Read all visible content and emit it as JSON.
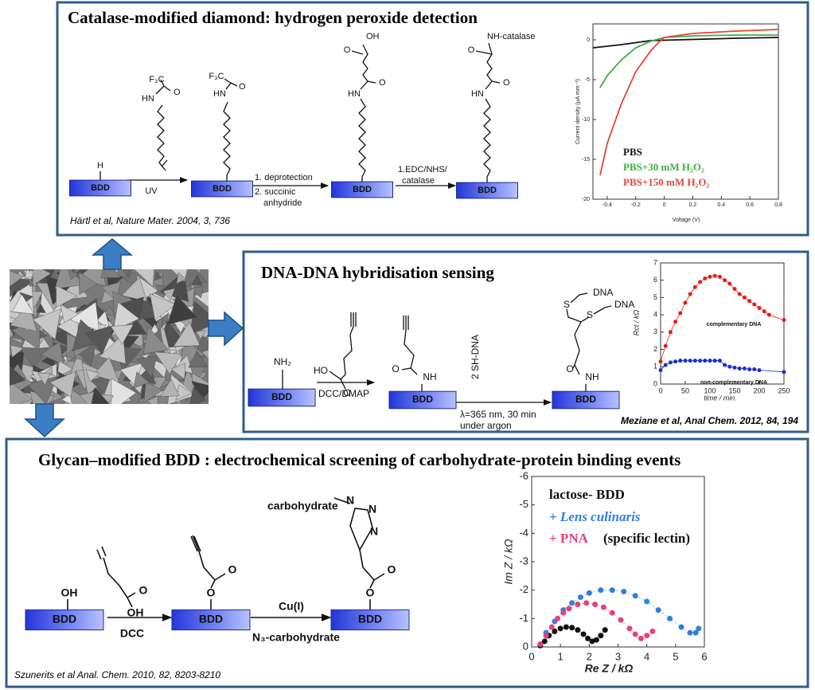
{
  "panels": [
    {
      "title": "Catalase-modified diamond: hydrogen peroxide detection",
      "citation": "Härtl et al, Nature Mater. 2004, 3, 736",
      "labels": [
        "H",
        "BDD",
        "UV",
        "F₃C",
        "O",
        "HN",
        "BDD",
        "F₃C",
        "O",
        "HN",
        "1. deprotection",
        "2. succinic",
        "anhydride",
        "BDD",
        "OH",
        "O",
        "O",
        "HN",
        "1.EDC/NHS/",
        "catalase",
        "BDD",
        "NH-catalase",
        "O",
        "O",
        "HN"
      ],
      "chart": {
        "type": "line",
        "xlabel": "Voltage (V)",
        "ylabel": "Current density (μA mm⁻²)",
        "xlim": [
          -0.5,
          0.8
        ],
        "xticks": [
          -0.4,
          -0.2,
          0,
          0.2,
          0.4,
          0.6,
          0.8
        ],
        "ylim": [
          -20,
          2
        ],
        "yticks": [
          0,
          -5,
          -10,
          -15,
          -20
        ],
        "series": [
          {
            "name": "PBS",
            "color": "#111111",
            "x": [
              -0.5,
              -0.3,
              -0.1,
              0.1,
              0.3,
              0.5,
              0.8
            ],
            "values": [
              -1,
              -0.6,
              -0.1,
              0,
              0.1,
              0.2,
              0.3
            ]
          },
          {
            "name": "PBS+30 mM H₂O₂",
            "color": "#3fae3f",
            "x": [
              -0.45,
              -0.4,
              -0.3,
              -0.2,
              -0.1,
              0,
              0.2,
              0.5,
              0.8
            ],
            "values": [
              -6,
              -4.5,
              -2.5,
              -1,
              -0.2,
              0.3,
              0.5,
              0.6,
              0.6
            ]
          },
          {
            "name": "PBS+150 mM H₂O₂",
            "color": "#e2453c",
            "x": [
              -0.45,
              -0.4,
              -0.3,
              -0.2,
              -0.1,
              -0.05,
              0,
              0.2,
              0.5,
              0.8
            ],
            "values": [
              -17,
              -13,
              -8,
              -4,
              -1.5,
              -0.5,
              0.3,
              0.8,
              1.1,
              1.3
            ]
          }
        ]
      }
    },
    {
      "title": "DNA-DNA hybridisation sensing",
      "citation": "Meziane et al, Anal Chem. 2012, 84, 194",
      "labels": [
        "NH₂",
        "BDD",
        "HO",
        "O",
        "DCC/DMAP",
        "O",
        "NH",
        "BDD",
        "2 SH-DNA",
        "λ=365 nm, 30 min",
        "under argon",
        "S",
        "DNA",
        "S",
        "DNA",
        "O",
        "NH",
        "BDD"
      ],
      "chart": {
        "type": "line",
        "xlabel": "time / min.",
        "ylabel": "Rct / kΩ",
        "xlim": [
          0,
          250
        ],
        "xticks": [
          0,
          50,
          100,
          150,
          200,
          250
        ],
        "ylim": [
          0,
          7
        ],
        "yticks": [
          0,
          1,
          2,
          3,
          4,
          5,
          6,
          7
        ],
        "annotations": [
          "complementary DNA",
          "non-complementary DNA"
        ],
        "series": [
          {
            "color": "#e0201c",
            "x": [
              0,
              10,
              20,
              30,
              40,
              50,
              60,
              70,
              80,
              90,
              100,
              110,
              120,
              130,
              140,
              150,
              160,
              170,
              180,
              190,
              200,
              210,
              220,
              250
            ],
            "values": [
              1.3,
              2.2,
              3,
              3.6,
              4.1,
              4.7,
              5.2,
              5.6,
              5.9,
              6.1,
              6.2,
              6.25,
              6.2,
              6,
              5.8,
              5.5,
              5.2,
              5,
              4.8,
              4.6,
              4.4,
              4.2,
              4,
              3.7
            ]
          },
          {
            "color": "#1f2fd0",
            "x": [
              0,
              10,
              20,
              30,
              40,
              50,
              60,
              70,
              80,
              90,
              100,
              110,
              120,
              130,
              140,
              150,
              160,
              170,
              180,
              190,
              200,
              250
            ],
            "values": [
              0.8,
              1.1,
              1.25,
              1.3,
              1.35,
              1.35,
              1.35,
              1.35,
              1.35,
              1.35,
              1.35,
              1.35,
              1.35,
              1.1,
              1,
              0.95,
              0.9,
              0.9,
              0.85,
              0.85,
              0.8,
              0.7
            ]
          }
        ]
      }
    },
    {
      "title": "Glycan–modified BDD :  electrochemical screening of carbohydrate-protein binding events",
      "citation": "Szunerits et al Anal. Chem. 2010, 82, 8203-8210",
      "labels": [
        "OH",
        "BDD",
        "O",
        "OH",
        "DCC",
        "O",
        "O",
        "BDD",
        "Cu(I)",
        "N₃-carbohydrate",
        "carbohydrate",
        "N",
        "N",
        "N",
        "O",
        "O",
        "BDD"
      ],
      "chart": {
        "type": "scatter",
        "xlabel": "Re Z / kΩ",
        "ylabel": "Im Z / kΩ",
        "xlim": [
          0,
          6
        ],
        "xticks": [
          0,
          1,
          2,
          3,
          4,
          5,
          6
        ],
        "ylim": [
          0,
          -6
        ],
        "yticks": [
          0,
          -1,
          -2,
          -3,
          -4,
          -5,
          -6
        ],
        "annotations": [
          "(specific lectin)"
        ],
        "series": [
          {
            "name": "lactose- BDD",
            "color": "#111111",
            "x": [
              0.3,
              0.45,
              0.6,
              0.8,
              1,
              1.2,
              1.4,
              1.6,
              1.8,
              1.95,
              2.1,
              2.25,
              2.4,
              2.55
            ],
            "values": [
              -0.05,
              -0.2,
              -0.4,
              -0.55,
              -0.65,
              -0.7,
              -0.68,
              -0.6,
              -0.45,
              -0.3,
              -0.2,
              -0.25,
              -0.4,
              -0.6
            ]
          },
          {
            "name": "+ Lens culinaris",
            "color": "#2f7fe0",
            "x": [
              0.3,
              0.5,
              0.8,
              1.1,
              1.4,
              1.7,
              2,
              2.4,
              2.8,
              3.2,
              3.6,
              4,
              4.4,
              4.8,
              5.2,
              5.5,
              5.7,
              5.8
            ],
            "values": [
              -0.1,
              -0.5,
              -0.9,
              -1.3,
              -1.55,
              -1.75,
              -1.9,
              -2,
              -2,
              -1.95,
              -1.8,
              -1.6,
              -1.3,
              -1,
              -0.7,
              -0.5,
              -0.5,
              -0.65
            ]
          },
          {
            "name": "+ PNA",
            "color": "#e8407a",
            "x": [
              0.3,
              0.5,
              0.7,
              0.9,
              1.1,
              1.3,
              1.6,
              1.9,
              2.2,
              2.5,
              2.8,
              3.1,
              3.4,
              3.6,
              3.8,
              4,
              4.2
            ],
            "values": [
              -0.1,
              -0.4,
              -0.7,
              -1,
              -1.2,
              -1.35,
              -1.5,
              -1.55,
              -1.5,
              -1.4,
              -1.2,
              -0.95,
              -0.65,
              -0.45,
              -0.3,
              -0.4,
              -0.55
            ]
          }
        ]
      }
    }
  ]
}
